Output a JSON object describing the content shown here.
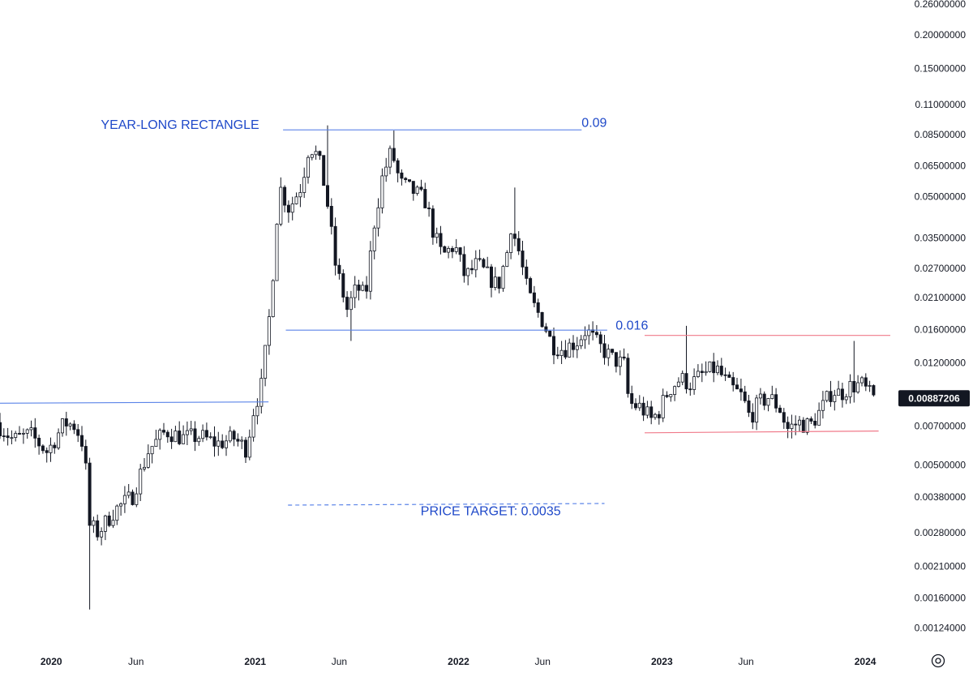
{
  "chart_data": {
    "type": "candlestick",
    "scale": "log",
    "x_range": [
      "2019-10-01",
      "2024-02-15"
    ],
    "y_range": [
      0.00112,
      0.262
    ],
    "y_ticks": [
      {
        "value": 0.26,
        "label": "0.26000000"
      },
      {
        "value": 0.2,
        "label": "0.20000000"
      },
      {
        "value": 0.15,
        "label": "0.15000000"
      },
      {
        "value": 0.11,
        "label": "0.11000000"
      },
      {
        "value": 0.085,
        "label": "0.08500000"
      },
      {
        "value": 0.065,
        "label": "0.06500000"
      },
      {
        "value": 0.05,
        "label": "0.05000000"
      },
      {
        "value": 0.035,
        "label": "0.03500000"
      },
      {
        "value": 0.027,
        "label": "0.02700000"
      },
      {
        "value": 0.021,
        "label": "0.02100000"
      },
      {
        "value": 0.016,
        "label": "0.01600000"
      },
      {
        "value": 0.012,
        "label": "0.01200000"
      },
      {
        "value": 0.007,
        "label": "0.00700000"
      },
      {
        "value": 0.005,
        "label": "0.00500000"
      },
      {
        "value": 0.0038,
        "label": "0.00380000"
      },
      {
        "value": 0.0028,
        "label": "0.00280000"
      },
      {
        "value": 0.0021,
        "label": "0.00210000"
      },
      {
        "value": 0.0016,
        "label": "0.00160000"
      },
      {
        "value": 0.00124,
        "label": "0.00124000"
      }
    ],
    "x_ticks": [
      {
        "date": "2020-01-01",
        "label": "2020",
        "bold": true
      },
      {
        "date": "2020-06-01",
        "label": "Jun",
        "bold": false
      },
      {
        "date": "2021-01-01",
        "label": "2021",
        "bold": true
      },
      {
        "date": "2021-06-01",
        "label": "Jun",
        "bold": false
      },
      {
        "date": "2022-01-01",
        "label": "2022",
        "bold": true
      },
      {
        "date": "2022-06-01",
        "label": "Jun",
        "bold": false
      },
      {
        "date": "2023-01-01",
        "label": "2023",
        "bold": true
      },
      {
        "date": "2023-06-01",
        "label": "Jun",
        "bold": false
      },
      {
        "date": "2024-01-01",
        "label": "2024",
        "bold": true
      }
    ],
    "current_price": {
      "value": 0.00887206,
      "label": "0.00887206"
    },
    "price_path": [
      [
        "2019-10-01",
        0.0072
      ],
      [
        "2019-11-01",
        0.0062
      ],
      [
        "2019-12-01",
        0.0065
      ],
      [
        "2020-01-01",
        0.0056
      ],
      [
        "2020-02-01",
        0.0072
      ],
      [
        "2020-02-20",
        0.007
      ],
      [
        "2020-03-08",
        0.0058
      ],
      [
        "2020-03-15",
        0.003
      ],
      [
        "2020-04-01",
        0.0028
      ],
      [
        "2020-05-01",
        0.0034
      ],
      [
        "2020-06-01",
        0.0038
      ],
      [
        "2020-07-01",
        0.0057
      ],
      [
        "2020-08-01",
        0.0067
      ],
      [
        "2020-09-01",
        0.0063
      ],
      [
        "2020-10-01",
        0.0064
      ],
      [
        "2020-11-01",
        0.006
      ],
      [
        "2020-12-01",
        0.0063
      ],
      [
        "2020-12-25",
        0.0057
      ],
      [
        "2021-01-01",
        0.0075
      ],
      [
        "2021-01-20",
        0.01
      ],
      [
        "2021-02-05",
        0.02
      ],
      [
        "2021-02-20",
        0.055
      ],
      [
        "2021-03-10",
        0.045
      ],
      [
        "2021-04-01",
        0.055
      ],
      [
        "2021-04-15",
        0.078
      ],
      [
        "2021-05-01",
        0.07
      ],
      [
        "2021-05-15",
        0.052
      ],
      [
        "2021-06-01",
        0.028
      ],
      [
        "2021-06-22",
        0.019
      ],
      [
        "2021-07-10",
        0.023
      ],
      [
        "2021-07-25",
        0.021
      ],
      [
        "2021-08-10",
        0.04
      ],
      [
        "2021-08-25",
        0.06
      ],
      [
        "2021-09-10",
        0.074
      ],
      [
        "2021-09-25",
        0.056
      ],
      [
        "2021-10-20",
        0.052
      ],
      [
        "2021-11-10",
        0.048
      ],
      [
        "2021-11-25",
        0.036
      ],
      [
        "2021-12-10",
        0.03
      ],
      [
        "2022-01-01",
        0.033
      ],
      [
        "2022-01-20",
        0.025
      ],
      [
        "2022-02-10",
        0.028
      ],
      [
        "2022-02-25",
        0.026
      ],
      [
        "2022-03-20",
        0.023
      ],
      [
        "2022-04-05",
        0.031
      ],
      [
        "2022-04-12",
        0.039
      ],
      [
        "2022-04-25",
        0.032
      ],
      [
        "2022-05-10",
        0.023
      ],
      [
        "2022-05-20",
        0.02
      ],
      [
        "2022-06-10",
        0.017
      ],
      [
        "2022-06-25",
        0.014
      ],
      [
        "2022-07-15",
        0.0135
      ],
      [
        "2022-08-10",
        0.0145
      ],
      [
        "2022-08-25",
        0.016
      ],
      [
        "2022-09-15",
        0.014
      ],
      [
        "2022-10-10",
        0.0125
      ],
      [
        "2022-11-01",
        0.0118
      ],
      [
        "2022-11-10",
        0.0085
      ],
      [
        "2022-12-01",
        0.0082
      ],
      [
        "2022-12-20",
        0.0074
      ],
      [
        "2023-01-01",
        0.0078
      ],
      [
        "2023-01-20",
        0.0095
      ],
      [
        "2023-02-10",
        0.0105
      ],
      [
        "2023-03-01",
        0.01
      ],
      [
        "2023-03-20",
        0.0108
      ],
      [
        "2023-04-15",
        0.0115
      ],
      [
        "2023-05-10",
        0.0098
      ],
      [
        "2023-06-01",
        0.009
      ],
      [
        "2023-06-15",
        0.0075
      ],
      [
        "2023-07-01",
        0.0085
      ],
      [
        "2023-07-20",
        0.009
      ],
      [
        "2023-08-10",
        0.008
      ],
      [
        "2023-08-20",
        0.0068
      ],
      [
        "2023-09-10",
        0.0072
      ],
      [
        "2023-10-01",
        0.007
      ],
      [
        "2023-10-20",
        0.008
      ],
      [
        "2023-11-10",
        0.0095
      ],
      [
        "2023-11-25",
        0.0092
      ],
      [
        "2023-12-10",
        0.0098
      ],
      [
        "2024-01-01",
        0.01
      ],
      [
        "2024-01-15",
        0.0092
      ],
      [
        "2024-01-22",
        0.0089
      ]
    ],
    "spikes": [
      {
        "date": "2020-03-12",
        "value": 0.00145,
        "dir": "low"
      },
      {
        "date": "2021-05-08",
        "value": 0.092,
        "dir": "high"
      },
      {
        "date": "2021-09-06",
        "value": 0.088,
        "dir": "high"
      },
      {
        "date": "2021-06-22",
        "value": 0.0145,
        "dir": "low"
      },
      {
        "date": "2022-04-10",
        "value": 0.054,
        "dir": "high"
      },
      {
        "date": "2023-02-14",
        "value": 0.0165,
        "dir": "high"
      },
      {
        "date": "2023-12-12",
        "value": 0.0145,
        "dir": "high"
      },
      {
        "date": "2023-08-17",
        "value": 0.0063,
        "dir": "low"
      }
    ],
    "trend_lines": [
      {
        "name": "support-2020",
        "color": "#5b84e8",
        "dash": false,
        "from": [
          "2019-10-01",
          0.0085
        ],
        "to": [
          "2021-01-25",
          0.0086
        ]
      },
      {
        "name": "rectangle-top",
        "color": "#5b84e8",
        "dash": false,
        "from": [
          "2021-02-20",
          0.0885
        ],
        "to": [
          "2022-08-10",
          0.0885
        ]
      },
      {
        "name": "rectangle-bottom",
        "color": "#5b84e8",
        "dash": false,
        "from": [
          "2021-02-25",
          0.0159
        ],
        "to": [
          "2022-09-25",
          0.0159
        ]
      },
      {
        "name": "price-target-line",
        "color": "#5b84e8",
        "dash": true,
        "from": [
          "2021-03-01",
          0.00355
        ],
        "to": [
          "2022-09-20",
          0.0036
        ]
      },
      {
        "name": "range-top",
        "color": "#f07a8a",
        "dash": false,
        "from": [
          "2022-12-01",
          0.0152
        ],
        "to": [
          "2024-02-15",
          0.0152
        ]
      },
      {
        "name": "range-bottom",
        "color": "#f07a8a",
        "dash": false,
        "from": [
          "2022-12-01",
          0.0066
        ],
        "to": [
          "2024-01-25",
          0.0067
        ]
      }
    ],
    "annotations": [
      {
        "text": "YEAR-LONG RECTANGLE",
        "color": "#1f49c9",
        "at": [
          "2020-03-30",
          0.0891
        ]
      },
      {
        "text": "0.09",
        "color": "#1f49c9",
        "at": [
          "2022-08-10",
          0.0907
        ]
      },
      {
        "text": "0.016",
        "color": "#1f49c9",
        "at": [
          "2022-10-10",
          0.016
        ]
      },
      {
        "text": "PRICE TARGET: 0.0035",
        "color": "#1f49c9",
        "at": [
          "2021-10-25",
          0.00325
        ]
      }
    ]
  }
}
